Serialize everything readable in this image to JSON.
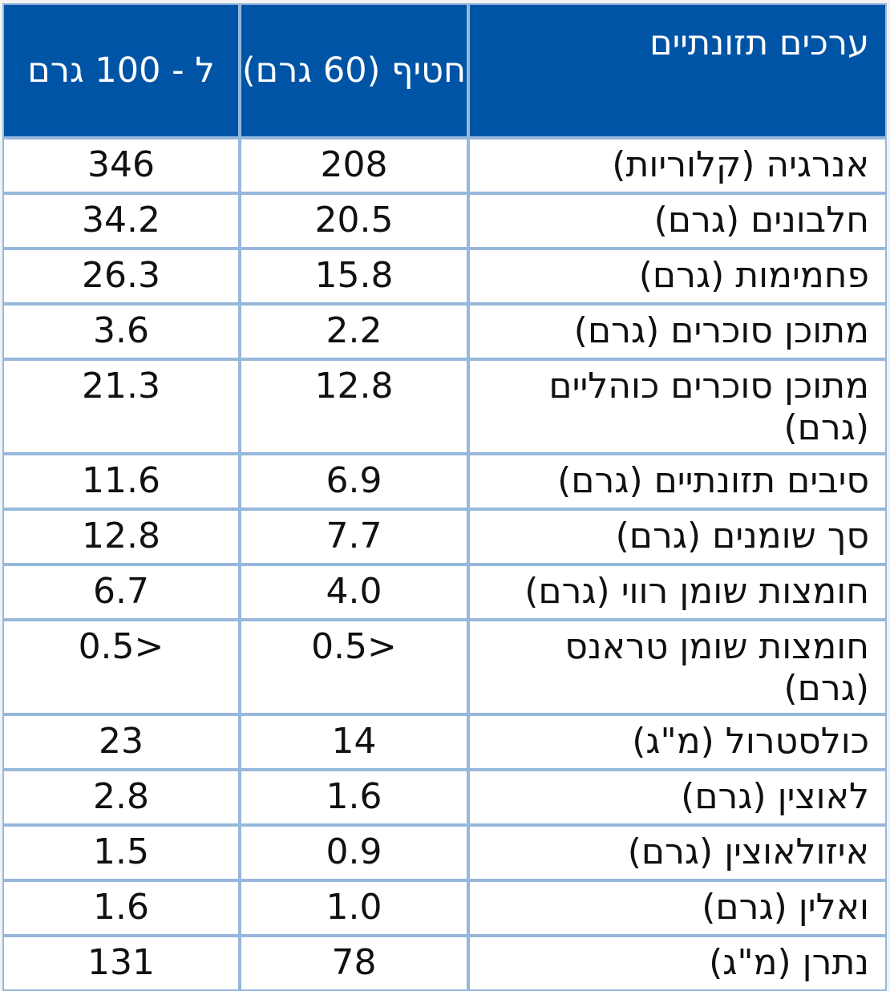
{
  "header": {
    "nutrient": "ערכים תזונתיים",
    "per_snack": "חטיף (60 גרם)",
    "per_100": "ל - 100 גרם"
  },
  "colors": {
    "header_bg": "#0054a6",
    "grid": "#96b8dc"
  },
  "rows": [
    {
      "name": "אנרגיה (קלוריות)",
      "snack": "208",
      "per100": "346"
    },
    {
      "name": "חלבונים (גרם)",
      "snack": "20.5",
      "per100": "34.2"
    },
    {
      "name": "פחמימות (גרם)",
      "snack": "15.8",
      "per100": "26.3"
    },
    {
      "name": "מתוכן סוכרים (גרם)",
      "snack": "2.2",
      "per100": "3.6"
    },
    {
      "name": "מתוכן סוכרים כוהליים (גרם)",
      "snack": "12.8",
      "per100": "21.3"
    },
    {
      "name": "סיבים תזונתיים (גרם)",
      "snack": "6.9",
      "per100": "11.6"
    },
    {
      "name": "סך שומנים (גרם)",
      "snack": "7.7",
      "per100": "12.8"
    },
    {
      "name": "חומצות שומן רווי (גרם)",
      "snack": "4.0",
      "per100": "6.7"
    },
    {
      "name": "חומצות שומן טראנס (גרם)",
      "snack": "<0.5",
      "per100": "<0.5"
    },
    {
      "name": "כולסטרול (מ\"ג)",
      "snack": "14",
      "per100": "23"
    },
    {
      "name": "לאוצין (גרם)",
      "snack": "1.6",
      "per100": "2.8"
    },
    {
      "name": "איזולאוצין (גרם)",
      "snack": "0.9",
      "per100": "1.5"
    },
    {
      "name": "ואלין (גרם)",
      "snack": "1.0",
      "per100": "1.6"
    },
    {
      "name": "נתרן (מ\"ג)",
      "snack": "78",
      "per100": "131"
    }
  ]
}
